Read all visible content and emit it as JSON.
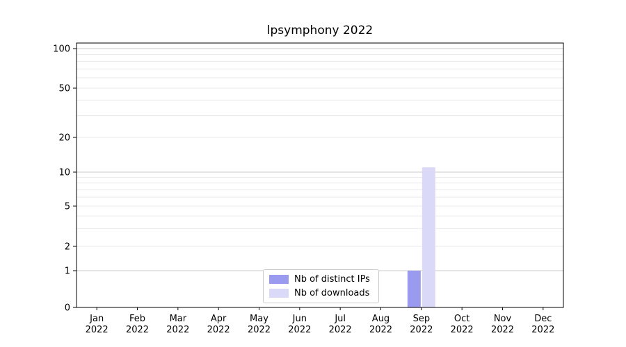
{
  "chart_data": {
    "type": "bar",
    "title": "lpsymphony 2022",
    "categories": [
      "Jan 2022",
      "Feb 2022",
      "Mar 2022",
      "Apr 2022",
      "May 2022",
      "Jun 2022",
      "Jul 2022",
      "Aug 2022",
      "Sep 2022",
      "Oct 2022",
      "Nov 2022",
      "Dec 2022"
    ],
    "series": [
      {
        "name": "Nb of distinct IPs",
        "color": "#9a9aee",
        "values": [
          0,
          0,
          0,
          0,
          0,
          0,
          0,
          0,
          1,
          0,
          0,
          0
        ]
      },
      {
        "name": "Nb of downloads",
        "color": "#dadaf8",
        "values": [
          0,
          0,
          0,
          0,
          0,
          0,
          0,
          0,
          11,
          0,
          0,
          0
        ]
      }
    ],
    "yscale": "symlog",
    "yticks": [
      0,
      1,
      2,
      5,
      10,
      20,
      50,
      100
    ],
    "ylim": [
      0,
      100
    ],
    "grid": true,
    "legend_position": "bottom-center"
  }
}
